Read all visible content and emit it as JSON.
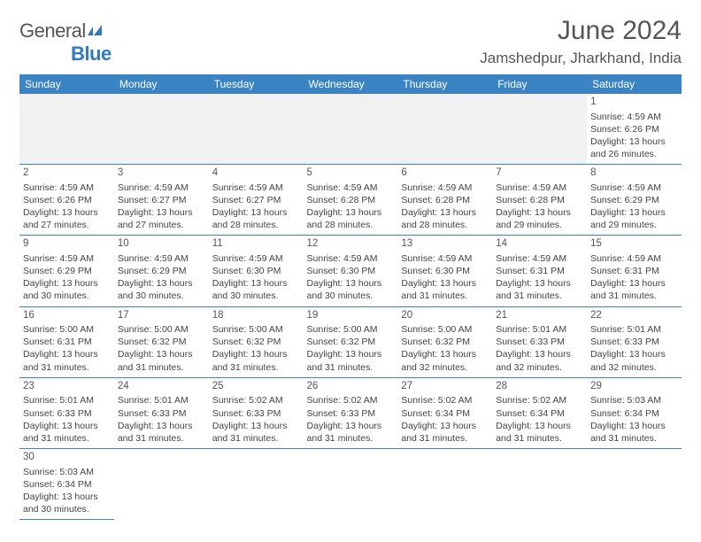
{
  "brand": {
    "part1": "General",
    "part2": "Blue"
  },
  "title": "June 2024",
  "location": "Jamshedpur, Jharkhand, India",
  "colors": {
    "header_bg": "#3b84c4",
    "header_text": "#ffffff",
    "rule": "#3b84c4",
    "blank_bg": "#f1f1f1"
  },
  "weekdays": [
    "Sunday",
    "Monday",
    "Tuesday",
    "Wednesday",
    "Thursday",
    "Friday",
    "Saturday"
  ],
  "days": {
    "1": {
      "sunrise": "Sunrise: 4:59 AM",
      "sunset": "Sunset: 6:26 PM",
      "daylight": "Daylight: 13 hours and 26 minutes."
    },
    "2": {
      "sunrise": "Sunrise: 4:59 AM",
      "sunset": "Sunset: 6:26 PM",
      "daylight": "Daylight: 13 hours and 27 minutes."
    },
    "3": {
      "sunrise": "Sunrise: 4:59 AM",
      "sunset": "Sunset: 6:27 PM",
      "daylight": "Daylight: 13 hours and 27 minutes."
    },
    "4": {
      "sunrise": "Sunrise: 4:59 AM",
      "sunset": "Sunset: 6:27 PM",
      "daylight": "Daylight: 13 hours and 28 minutes."
    },
    "5": {
      "sunrise": "Sunrise: 4:59 AM",
      "sunset": "Sunset: 6:28 PM",
      "daylight": "Daylight: 13 hours and 28 minutes."
    },
    "6": {
      "sunrise": "Sunrise: 4:59 AM",
      "sunset": "Sunset: 6:28 PM",
      "daylight": "Daylight: 13 hours and 28 minutes."
    },
    "7": {
      "sunrise": "Sunrise: 4:59 AM",
      "sunset": "Sunset: 6:28 PM",
      "daylight": "Daylight: 13 hours and 29 minutes."
    },
    "8": {
      "sunrise": "Sunrise: 4:59 AM",
      "sunset": "Sunset: 6:29 PM",
      "daylight": "Daylight: 13 hours and 29 minutes."
    },
    "9": {
      "sunrise": "Sunrise: 4:59 AM",
      "sunset": "Sunset: 6:29 PM",
      "daylight": "Daylight: 13 hours and 30 minutes."
    },
    "10": {
      "sunrise": "Sunrise: 4:59 AM",
      "sunset": "Sunset: 6:29 PM",
      "daylight": "Daylight: 13 hours and 30 minutes."
    },
    "11": {
      "sunrise": "Sunrise: 4:59 AM",
      "sunset": "Sunset: 6:30 PM",
      "daylight": "Daylight: 13 hours and 30 minutes."
    },
    "12": {
      "sunrise": "Sunrise: 4:59 AM",
      "sunset": "Sunset: 6:30 PM",
      "daylight": "Daylight: 13 hours and 30 minutes."
    },
    "13": {
      "sunrise": "Sunrise: 4:59 AM",
      "sunset": "Sunset: 6:30 PM",
      "daylight": "Daylight: 13 hours and 31 minutes."
    },
    "14": {
      "sunrise": "Sunrise: 4:59 AM",
      "sunset": "Sunset: 6:31 PM",
      "daylight": "Daylight: 13 hours and 31 minutes."
    },
    "15": {
      "sunrise": "Sunrise: 4:59 AM",
      "sunset": "Sunset: 6:31 PM",
      "daylight": "Daylight: 13 hours and 31 minutes."
    },
    "16": {
      "sunrise": "Sunrise: 5:00 AM",
      "sunset": "Sunset: 6:31 PM",
      "daylight": "Daylight: 13 hours and 31 minutes."
    },
    "17": {
      "sunrise": "Sunrise: 5:00 AM",
      "sunset": "Sunset: 6:32 PM",
      "daylight": "Daylight: 13 hours and 31 minutes."
    },
    "18": {
      "sunrise": "Sunrise: 5:00 AM",
      "sunset": "Sunset: 6:32 PM",
      "daylight": "Daylight: 13 hours and 31 minutes."
    },
    "19": {
      "sunrise": "Sunrise: 5:00 AM",
      "sunset": "Sunset: 6:32 PM",
      "daylight": "Daylight: 13 hours and 31 minutes."
    },
    "20": {
      "sunrise": "Sunrise: 5:00 AM",
      "sunset": "Sunset: 6:32 PM",
      "daylight": "Daylight: 13 hours and 32 minutes."
    },
    "21": {
      "sunrise": "Sunrise: 5:01 AM",
      "sunset": "Sunset: 6:33 PM",
      "daylight": "Daylight: 13 hours and 32 minutes."
    },
    "22": {
      "sunrise": "Sunrise: 5:01 AM",
      "sunset": "Sunset: 6:33 PM",
      "daylight": "Daylight: 13 hours and 32 minutes."
    },
    "23": {
      "sunrise": "Sunrise: 5:01 AM",
      "sunset": "Sunset: 6:33 PM",
      "daylight": "Daylight: 13 hours and 31 minutes."
    },
    "24": {
      "sunrise": "Sunrise: 5:01 AM",
      "sunset": "Sunset: 6:33 PM",
      "daylight": "Daylight: 13 hours and 31 minutes."
    },
    "25": {
      "sunrise": "Sunrise: 5:02 AM",
      "sunset": "Sunset: 6:33 PM",
      "daylight": "Daylight: 13 hours and 31 minutes."
    },
    "26": {
      "sunrise": "Sunrise: 5:02 AM",
      "sunset": "Sunset: 6:33 PM",
      "daylight": "Daylight: 13 hours and 31 minutes."
    },
    "27": {
      "sunrise": "Sunrise: 5:02 AM",
      "sunset": "Sunset: 6:34 PM",
      "daylight": "Daylight: 13 hours and 31 minutes."
    },
    "28": {
      "sunrise": "Sunrise: 5:02 AM",
      "sunset": "Sunset: 6:34 PM",
      "daylight": "Daylight: 13 hours and 31 minutes."
    },
    "29": {
      "sunrise": "Sunrise: 5:03 AM",
      "sunset": "Sunset: 6:34 PM",
      "daylight": "Daylight: 13 hours and 31 minutes."
    },
    "30": {
      "sunrise": "Sunrise: 5:03 AM",
      "sunset": "Sunset: 6:34 PM",
      "daylight": "Daylight: 13 hours and 30 minutes."
    }
  },
  "layout": {
    "first_weekday_index": 6,
    "num_days": 30,
    "rows": 6,
    "cols": 7
  }
}
